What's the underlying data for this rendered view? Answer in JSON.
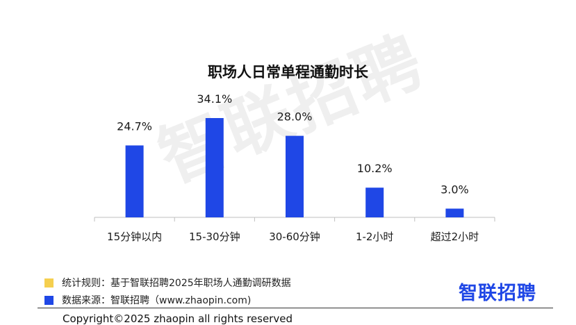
{
  "chart_data": {
    "type": "bar",
    "title": "职场人日常单程通勤时长",
    "categories": [
      "15分钟以内",
      "15-30分钟",
      "30-60分钟",
      "1-2小时",
      "超过2小时"
    ],
    "values": [
      24.7,
      34.1,
      28.0,
      10.2,
      3.0
    ],
    "value_labels": [
      "24.7%",
      "34.1%",
      "28.0%",
      "10.2%",
      "3.0%"
    ],
    "ylim": [
      0,
      34.1
    ],
    "grid": false,
    "legend": "none",
    "bar_color": "#1f47e6"
  },
  "watermark": "智联招聘",
  "footer": {
    "rule_label": "统计规则：基于智联招聘2025年职场人通勤调研数据",
    "rule_color": "#f5cf4f",
    "source_label": "数据来源：智联招聘（www.zhaopin.com)",
    "source_color": "#1f47e6",
    "logo": "智联招聘",
    "copyright": "Copyright©2025 zhaopin all rights reserved"
  }
}
